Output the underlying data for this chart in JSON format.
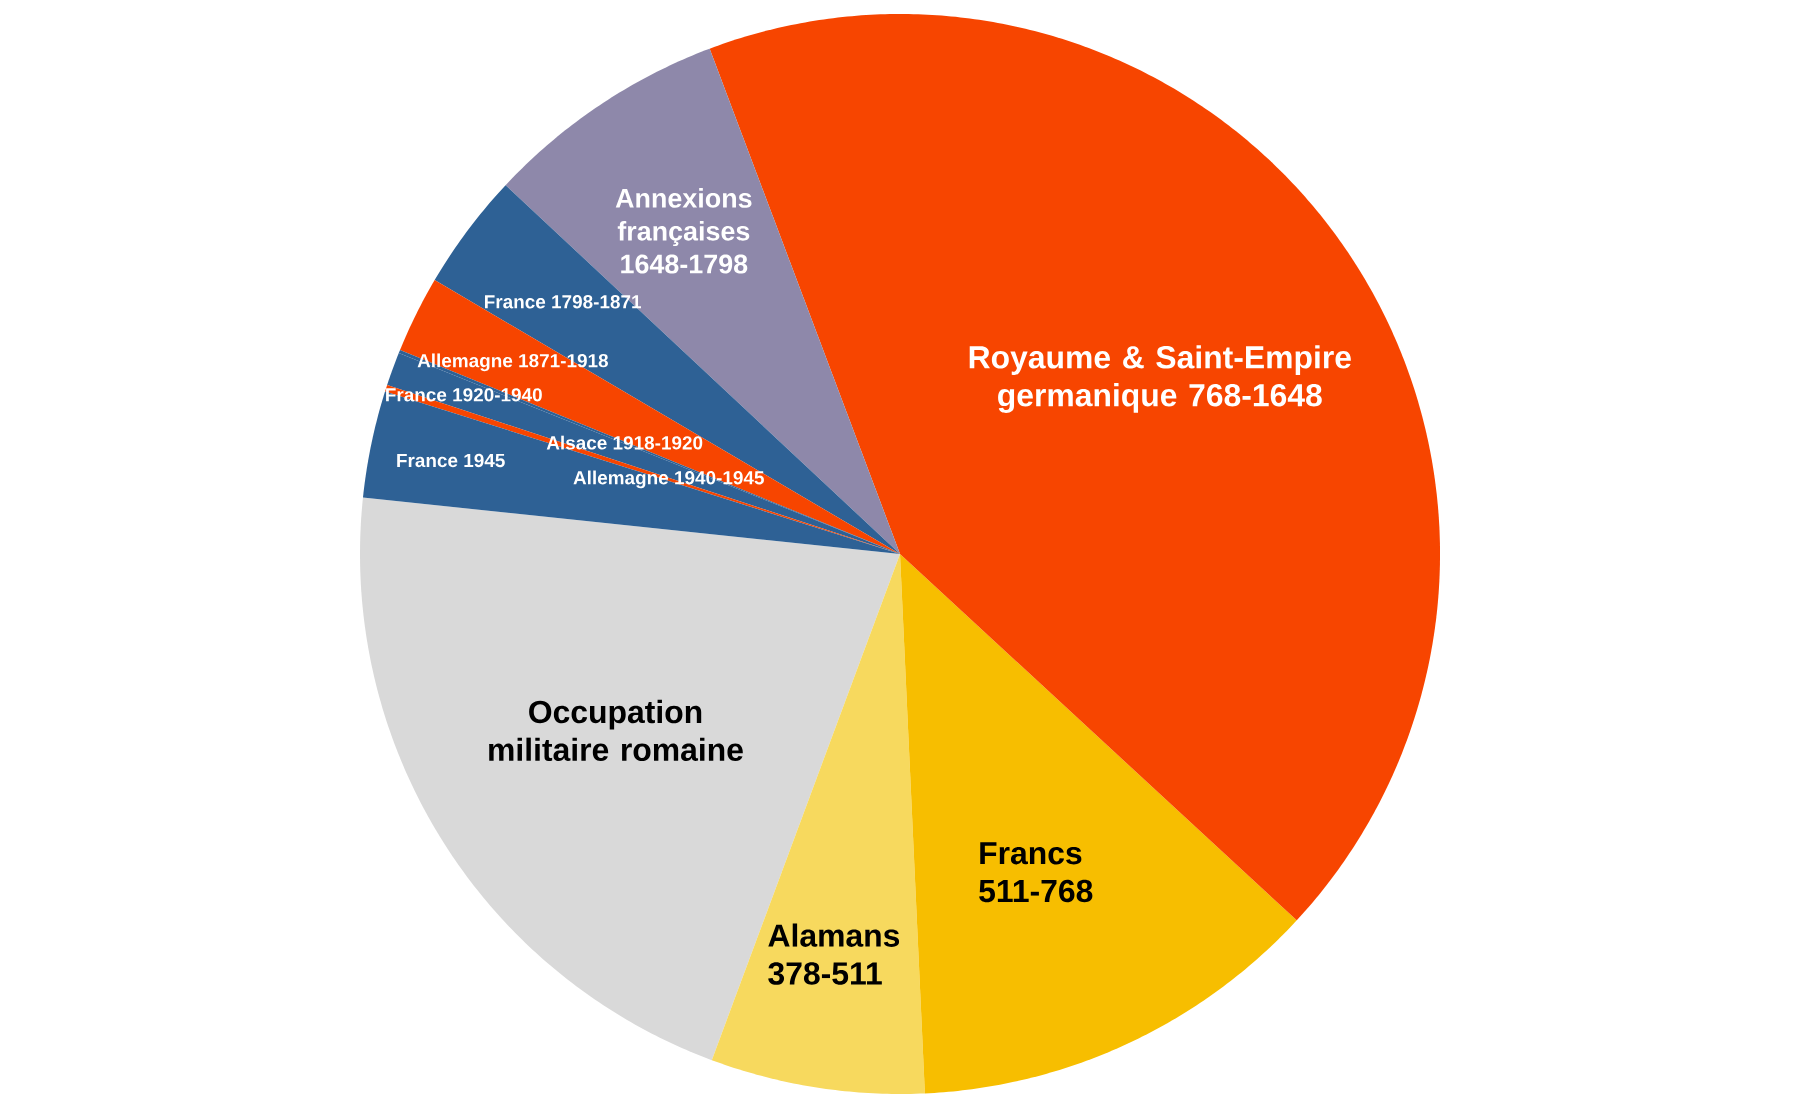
{
  "chart_data": {
    "type": "pie",
    "categories": [
      "Occupation militaire romaine",
      "Alamans 378-511",
      "Francs 511-768",
      "Royaume & Saint-Empire germanique 768-1648",
      "Annexions françaises 1648-1798",
      "France 1798-1871",
      "Allemagne 1871-1918",
      "Alsace 1918-1920",
      "France 1920-1940",
      "Allemagne 1940-1945",
      "France 1945"
    ],
    "values": [
      21.0,
      6.4,
      12.4,
      42.6,
      7.3,
      3.5,
      2.3,
      0.1,
      1.0,
      0.2,
      3.2
    ],
    "colors": [
      "#d9d9d9",
      "#f7d95e",
      "#f7be00",
      "#f74500",
      "#8e88aa",
      "#2e6195",
      "#f74500",
      "#2e6195",
      "#2e6195",
      "#f74500",
      "#2e6195"
    ]
  }
}
